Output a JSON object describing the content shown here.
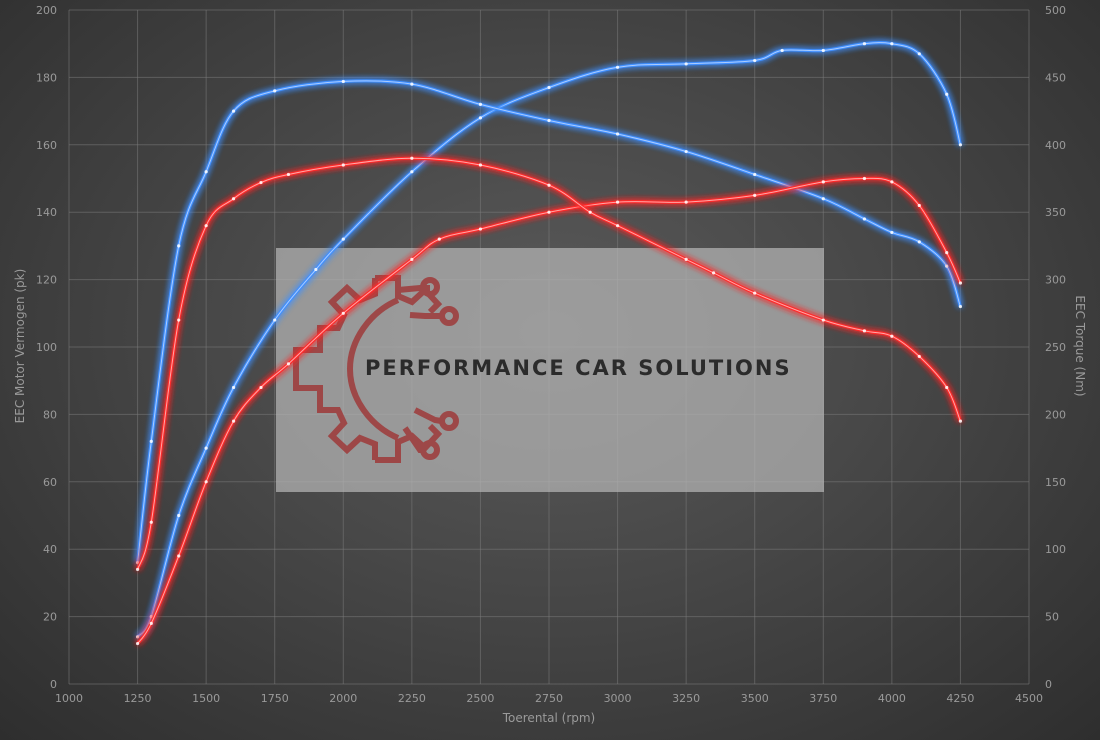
{
  "chart_data": {
    "type": "line",
    "xlabel": "Toerental (rpm)",
    "ylabel_left": "EEC Motor Vermogen (pk)",
    "ylabel_right": "EEC Torque (Nm)",
    "xlim": [
      1000,
      4500
    ],
    "ylim_left": [
      0,
      200
    ],
    "ylim_right": [
      0,
      500
    ],
    "x_ticks": [
      "1000",
      "1250",
      "1500",
      "1750",
      "2000",
      "2250",
      "2500",
      "2750",
      "3000",
      "3250",
      "3500",
      "3750",
      "4000",
      "4250",
      "4500"
    ],
    "y_ticks_left": [
      "0",
      "20",
      "40",
      "60",
      "80",
      "100",
      "120",
      "140",
      "160",
      "180",
      "200"
    ],
    "y_ticks_right": [
      "0",
      "50",
      "100",
      "150",
      "200",
      "250",
      "300",
      "350",
      "400",
      "450",
      "500"
    ],
    "grid": true,
    "legend": "none",
    "series": [
      {
        "axis": "left",
        "color": "#3f8fff",
        "x": [
          1250,
          1300,
          1400,
          1500,
          1600,
          1750,
          1900,
          2000,
          2250,
          2500,
          2750,
          3000,
          3250,
          3500,
          3600,
          3750,
          3900,
          4000,
          4100,
          4200,
          4250
        ],
        "y": [
          14,
          20,
          50,
          70,
          88,
          108,
          123,
          132,
          152,
          168,
          177,
          183,
          184,
          185,
          188,
          188,
          190,
          190,
          187,
          175,
          160
        ]
      },
      {
        "axis": "right",
        "color": "#3f8fff",
        "x": [
          1250,
          1300,
          1400,
          1500,
          1600,
          1750,
          2000,
          2250,
          2500,
          2750,
          3000,
          3250,
          3500,
          3750,
          3900,
          4000,
          4100,
          4200,
          4250
        ],
        "y": [
          90,
          180,
          325,
          380,
          425,
          440,
          447,
          445,
          430,
          418,
          408,
          395,
          378,
          360,
          345,
          335,
          328,
          310,
          280
        ]
      },
      {
        "axis": "left",
        "color": "#ff2a2a",
        "x": [
          1250,
          1300,
          1400,
          1500,
          1600,
          1700,
          1800,
          2000,
          2250,
          2350,
          2500,
          2750,
          3000,
          3250,
          3500,
          3750,
          3900,
          4000,
          4100,
          4200,
          4250
        ],
        "y": [
          12,
          18,
          38,
          60,
          78,
          88,
          95,
          110,
          126,
          132,
          135,
          140,
          143,
          143,
          145,
          149,
          150,
          149,
          142,
          128,
          119
        ]
      },
      {
        "axis": "right",
        "color": "#ff2a2a",
        "x": [
          1250,
          1300,
          1400,
          1500,
          1600,
          1700,
          1800,
          2000,
          2250,
          2500,
          2750,
          2900,
          3000,
          3250,
          3350,
          3500,
          3750,
          3900,
          4000,
          4100,
          4200,
          4250
        ],
        "y": [
          85,
          120,
          270,
          340,
          360,
          372,
          378,
          385,
          390,
          385,
          370,
          350,
          340,
          315,
          305,
          290,
          270,
          262,
          258,
          243,
          220,
          195
        ]
      }
    ]
  },
  "watermark": {
    "text": "PERFORMANCE CAR SOLUTIONS",
    "logo": "gear-circuit-logo",
    "colors": {
      "panel": "#b5b5b5",
      "logo": "#9e3a3a",
      "text": "#2b2b2b"
    }
  }
}
